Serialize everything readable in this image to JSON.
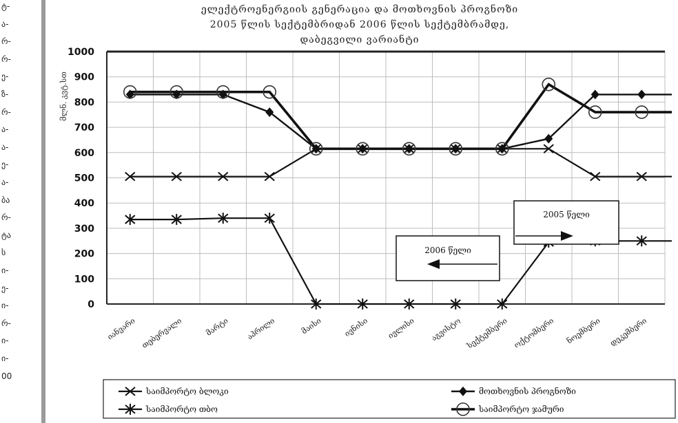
{
  "left_strip": [
    "ტ-",
    "ა-",
    "რ-",
    "რ-",
    "ე-",
    "ზ-",
    "რ-",
    "ა-",
    "ა-",
    "ე-",
    "ა-",
    "ბა",
    "რ-",
    "ტა",
    "ს",
    "ი-",
    "ე-",
    "ი-",
    "რ-",
    "ი-",
    "ი-",
    "00"
  ],
  "chart_data": {
    "type": "line",
    "title": [
      "ელექტროენერგიის გენერაცია და მოთხოვნის პროგნოზი",
      "2005   წლის სექტემბრიდან 2006 წლის სექტემბრამდე,",
      "დაბეგვილი ვარიანტი"
    ],
    "ylabel": "მლნ. კვტ.სთ",
    "ylim": [
      0,
      1000
    ],
    "yticks": [
      0,
      100,
      200,
      300,
      400,
      500,
      600,
      700,
      800,
      900,
      1000
    ],
    "categories": [
      "იანვარი",
      "თებერვალი",
      "მარტი",
      "აპრილი",
      "მაისი",
      "ივნისი",
      "ივლისი",
      "აგვისტო",
      "სექტემბერი",
      "ოქტომბერი",
      "ნოემბერი",
      "დეკემბერი"
    ],
    "series": [
      {
        "name": "საიმპორტო ბლოკი",
        "marker": "x",
        "values": [
          505,
          505,
          505,
          505,
          615,
          615,
          615,
          615,
          615,
          615,
          505,
          505
        ]
      },
      {
        "name": "საიმპორტო თბო",
        "marker": "asterisk",
        "values": [
          335,
          335,
          340,
          340,
          0,
          0,
          0,
          0,
          0,
          245,
          250,
          250
        ]
      },
      {
        "name": "მოთხოვნის პროგნოზი",
        "marker": "diamond",
        "values": [
          830,
          830,
          830,
          760,
          615,
          615,
          615,
          615,
          615,
          655,
          830,
          830
        ]
      },
      {
        "name": "საიმპორტო ჯამური",
        "marker": "circle",
        "values": [
          840,
          840,
          840,
          840,
          615,
          615,
          615,
          615,
          615,
          870,
          760,
          760
        ]
      }
    ],
    "annotations": [
      {
        "text": "2006 წელი",
        "arrow": "left"
      },
      {
        "text": "2005 წელი",
        "arrow": "right"
      }
    ],
    "grid": true,
    "legend": "bottom"
  }
}
